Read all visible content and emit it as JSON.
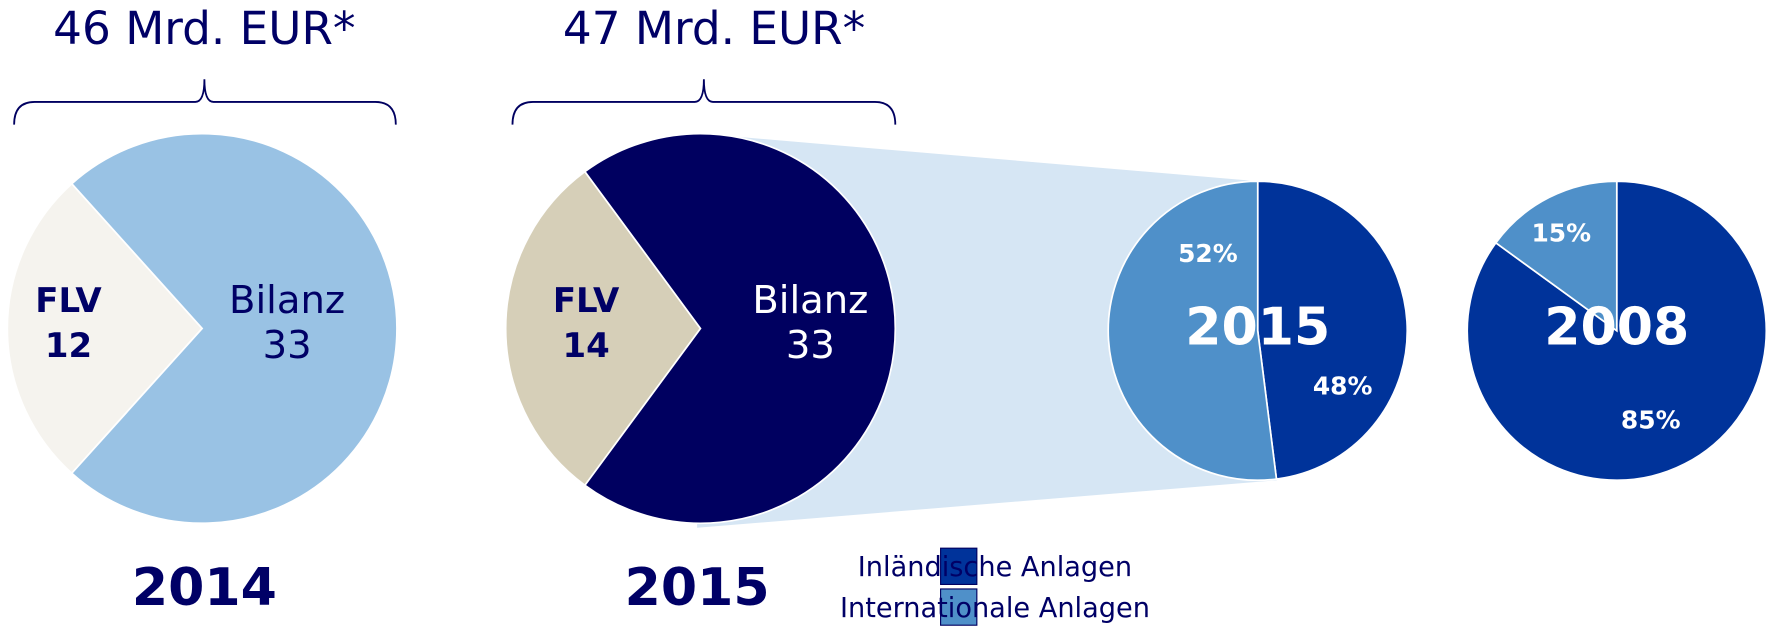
{
  "chart_data": [
    {
      "type": "pie",
      "title": "46 Mrd. EUR*",
      "label": "2014",
      "categories": [
        "FLV",
        "Bilanz"
      ],
      "values": [
        12,
        33
      ],
      "colors": [
        "#f5f3ee",
        "#99c2e4"
      ]
    },
    {
      "type": "pie",
      "title": "47 Mrd. EUR*",
      "label": "2015",
      "categories": [
        "FLV",
        "Bilanz"
      ],
      "values": [
        14,
        33
      ],
      "colors": [
        "#d6cfb8",
        "#000060"
      ]
    },
    {
      "type": "pie",
      "label": "2015",
      "values": [
        48,
        52
      ],
      "value_labels": [
        "48%",
        "52%"
      ],
      "colors": [
        "#00339a",
        "#4f90c9"
      ]
    },
    {
      "type": "pie",
      "label": "2008",
      "values": [
        85,
        15
      ],
      "value_labels": [
        "85%",
        "15%"
      ],
      "colors": [
        "#00339a",
        "#4f90c9"
      ]
    }
  ],
  "legend": [
    "Inländische Anlagen",
    "Internationale Anlagen"
  ]
}
